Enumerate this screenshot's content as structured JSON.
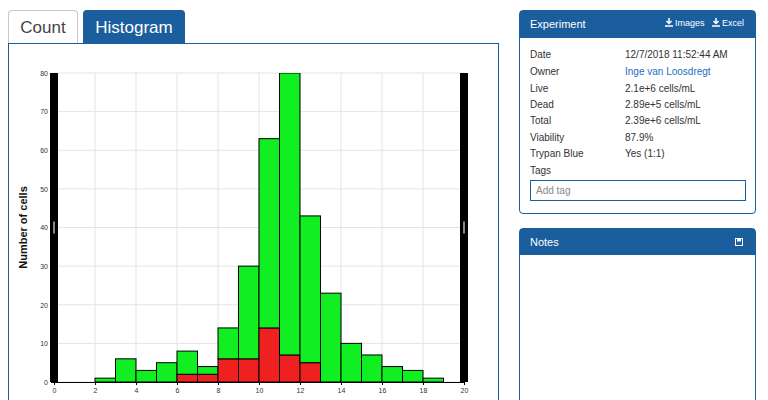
{
  "chart_data": {
    "type": "histogram",
    "y_label": "Number of cells",
    "bins": [
      2,
      3,
      4,
      5,
      6,
      7,
      8,
      9,
      10,
      11,
      12,
      13,
      14,
      15,
      16,
      17,
      18,
      19
    ],
    "series": [
      {
        "color": "#ee2020",
        "values": [
          0,
          0,
          0,
          0,
          2,
          2,
          6,
          6,
          14,
          7,
          5,
          0,
          0,
          0,
          0,
          0,
          0
        ]
      },
      {
        "color": "#11ee22",
        "values": [
          1,
          6,
          3,
          5,
          6,
          2,
          8,
          24,
          49,
          73,
          38,
          23,
          10,
          7,
          4,
          3,
          1
        ]
      }
    ],
    "stacked": true,
    "xlim": [
      0,
      20
    ],
    "xticks": [
      0,
      2,
      4,
      6,
      8,
      10,
      12,
      14,
      16,
      18,
      20
    ],
    "ylim": [
      0,
      80
    ],
    "yticks": [
      0,
      10,
      20,
      30,
      40,
      50,
      60,
      70,
      80
    ],
    "grid": true
  },
  "tabs": [
    "Count",
    "Histogram"
  ],
  "panel": {
    "title": "Experiment",
    "buttons": [
      "Images",
      "Excel"
    ],
    "rows": [
      {
        "label": "Date",
        "value": "12/7/2018 11:52:44 AM"
      },
      {
        "label": "Owner",
        "value": "Inge van Loosdregt"
      },
      {
        "label": "Live",
        "value": "2.1e+6 cells/mL"
      },
      {
        "label": "Dead",
        "value": "2.89e+5 cells/mL"
      },
      {
        "label": "Total",
        "value": "2.39e+6 cells/mL"
      },
      {
        "label": "Viability",
        "value": "87.9%"
      },
      {
        "label": "Trypan Blue",
        "value": "Yes (1:1)"
      },
      {
        "label": "Tags"
      }
    ],
    "tag_placeholder": "Add tag"
  },
  "notes": {
    "title": "Notes"
  }
}
